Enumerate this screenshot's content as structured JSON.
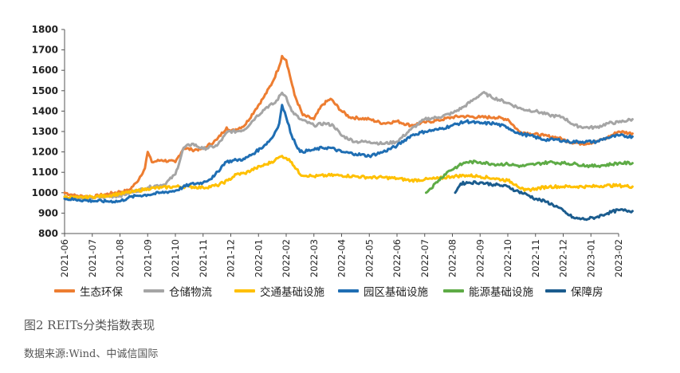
{
  "chart_data": {
    "type": "line",
    "ylim": [
      800,
      1800
    ],
    "yticks": [
      800,
      900,
      1000,
      1100,
      1200,
      1300,
      1400,
      1500,
      1600,
      1700,
      1800
    ],
    "x_ticks": [
      "2021-06",
      "2021-07",
      "2021-08",
      "2021-09",
      "2021-10",
      "2021-11",
      "2021-12",
      "2022-01",
      "2022-02",
      "2022-03",
      "2022-04",
      "2022-05",
      "2022-06",
      "2022-07",
      "2022-08",
      "2022-09",
      "2022-10",
      "2022-11",
      "2022-12",
      "2023-01",
      "2023-02"
    ],
    "series": [
      {
        "name": "生态环保",
        "color": "#ED7D31",
        "points": [
          [
            0,
            1000
          ],
          [
            0.4,
            985
          ],
          [
            1,
            980
          ],
          [
            1.5,
            992
          ],
          [
            2,
            1005
          ],
          [
            2.3,
            1010
          ],
          [
            2.6,
            1050
          ],
          [
            2.9,
            1120
          ],
          [
            3.0,
            1200
          ],
          [
            3.15,
            1150
          ],
          [
            3.5,
            1160
          ],
          [
            4,
            1150
          ],
          [
            4.3,
            1220
          ],
          [
            4.6,
            1210
          ],
          [
            5,
            1215
          ],
          [
            5.5,
            1260
          ],
          [
            5.85,
            1320
          ],
          [
            6,
            1300
          ],
          [
            6.5,
            1330
          ],
          [
            6.9,
            1410
          ],
          [
            7.2,
            1470
          ],
          [
            7.5,
            1540
          ],
          [
            7.75,
            1620
          ],
          [
            7.85,
            1670
          ],
          [
            8.0,
            1650
          ],
          [
            8.3,
            1480
          ],
          [
            8.6,
            1380
          ],
          [
            9,
            1360
          ],
          [
            9.3,
            1430
          ],
          [
            9.6,
            1460
          ],
          [
            10,
            1400
          ],
          [
            10.3,
            1370
          ],
          [
            11,
            1360
          ],
          [
            11.5,
            1340
          ],
          [
            12,
            1350
          ],
          [
            12.5,
            1330
          ],
          [
            13,
            1345
          ],
          [
            13.5,
            1355
          ],
          [
            14,
            1370
          ],
          [
            14.3,
            1375
          ],
          [
            15,
            1370
          ],
          [
            15.5,
            1370
          ],
          [
            16,
            1360
          ],
          [
            16.4,
            1300
          ],
          [
            16.8,
            1290
          ],
          [
            17.3,
            1280
          ],
          [
            17.8,
            1270
          ],
          [
            18.2,
            1250
          ],
          [
            18.7,
            1240
          ],
          [
            19.2,
            1250
          ],
          [
            19.6,
            1270
          ],
          [
            20,
            1300
          ],
          [
            20.5,
            1290
          ]
        ]
      },
      {
        "name": "仓储物流",
        "color": "#A5A5A5",
        "points": [
          [
            0,
            975
          ],
          [
            0.5,
            972
          ],
          [
            1,
            975
          ],
          [
            1.5,
            980
          ],
          [
            2,
            985
          ],
          [
            2.5,
            1005
          ],
          [
            3,
            1025
          ],
          [
            3.3,
            1035
          ],
          [
            3.6,
            1040
          ],
          [
            4,
            1090
          ],
          [
            4.3,
            1220
          ],
          [
            4.6,
            1240
          ],
          [
            5,
            1215
          ],
          [
            5.5,
            1230
          ],
          [
            5.9,
            1300
          ],
          [
            6.2,
            1300
          ],
          [
            6.5,
            1310
          ],
          [
            6.9,
            1370
          ],
          [
            7.3,
            1420
          ],
          [
            7.6,
            1440
          ],
          [
            7.85,
            1490
          ],
          [
            8.0,
            1470
          ],
          [
            8.2,
            1400
          ],
          [
            8.5,
            1360
          ],
          [
            9,
            1330
          ],
          [
            9.4,
            1340
          ],
          [
            9.7,
            1330
          ],
          [
            10,
            1280
          ],
          [
            10.5,
            1250
          ],
          [
            11,
            1250
          ],
          [
            11.5,
            1240
          ],
          [
            12,
            1250
          ],
          [
            12.5,
            1310
          ],
          [
            13,
            1360
          ],
          [
            13.5,
            1370
          ],
          [
            14,
            1390
          ],
          [
            14.4,
            1420
          ],
          [
            14.8,
            1460
          ],
          [
            15.1,
            1490
          ],
          [
            15.4,
            1470
          ],
          [
            16,
            1440
          ],
          [
            16.5,
            1410
          ],
          [
            17,
            1400
          ],
          [
            17.5,
            1380
          ],
          [
            18,
            1370
          ],
          [
            18.4,
            1330
          ],
          [
            18.8,
            1320
          ],
          [
            19.2,
            1320
          ],
          [
            19.6,
            1340
          ],
          [
            20,
            1345
          ],
          [
            20.5,
            1360
          ]
        ]
      },
      {
        "name": "交通基础设施",
        "color": "#FFC000",
        "points": [
          [
            0,
            980
          ],
          [
            0.5,
            975
          ],
          [
            1,
            980
          ],
          [
            1.5,
            985
          ],
          [
            2,
            995
          ],
          [
            2.5,
            1005
          ],
          [
            3,
            1020
          ],
          [
            3.5,
            1025
          ],
          [
            4,
            1030
          ],
          [
            4.5,
            1030
          ],
          [
            5,
            1025
          ],
          [
            5.5,
            1035
          ],
          [
            5.9,
            1060
          ],
          [
            6.2,
            1090
          ],
          [
            6.5,
            1095
          ],
          [
            6.9,
            1120
          ],
          [
            7.3,
            1140
          ],
          [
            7.6,
            1160
          ],
          [
            7.85,
            1180
          ],
          [
            8.0,
            1170
          ],
          [
            8.2,
            1150
          ],
          [
            8.5,
            1090
          ],
          [
            9,
            1080
          ],
          [
            9.5,
            1085
          ],
          [
            10,
            1085
          ],
          [
            10.5,
            1080
          ],
          [
            11,
            1075
          ],
          [
            11.5,
            1075
          ],
          [
            12,
            1070
          ],
          [
            12.5,
            1060
          ],
          [
            13,
            1065
          ],
          [
            13.5,
            1070
          ],
          [
            14,
            1080
          ],
          [
            14.5,
            1085
          ],
          [
            15,
            1080
          ],
          [
            15.5,
            1070
          ],
          [
            16,
            1060
          ],
          [
            16.3,
            1040
          ],
          [
            16.6,
            1010
          ],
          [
            17,
            1020
          ],
          [
            17.5,
            1030
          ],
          [
            18,
            1030
          ],
          [
            18.5,
            1030
          ],
          [
            19,
            1030
          ],
          [
            19.5,
            1035
          ],
          [
            20,
            1035
          ],
          [
            20.5,
            1030
          ]
        ]
      },
      {
        "name": "园区基础设施",
        "color": "#1F6EB3",
        "points": [
          [
            0,
            970
          ],
          [
            0.5,
            965
          ],
          [
            1,
            960
          ],
          [
            1.5,
            958
          ],
          [
            2,
            958
          ],
          [
            2.3,
            975
          ],
          [
            2.6,
            985
          ],
          [
            3,
            990
          ],
          [
            3.5,
            1000
          ],
          [
            4,
            1010
          ],
          [
            4.5,
            1040
          ],
          [
            5,
            1050
          ],
          [
            5.4,
            1080
          ],
          [
            5.8,
            1150
          ],
          [
            6.2,
            1160
          ],
          [
            6.5,
            1165
          ],
          [
            6.9,
            1200
          ],
          [
            7.2,
            1230
          ],
          [
            7.5,
            1270
          ],
          [
            7.75,
            1340
          ],
          [
            7.85,
            1430
          ],
          [
            8.0,
            1370
          ],
          [
            8.2,
            1280
          ],
          [
            8.5,
            1200
          ],
          [
            9,
            1210
          ],
          [
            9.3,
            1220
          ],
          [
            9.6,
            1220
          ],
          [
            10,
            1200
          ],
          [
            10.5,
            1190
          ],
          [
            11,
            1180
          ],
          [
            11.5,
            1200
          ],
          [
            12,
            1230
          ],
          [
            12.5,
            1280
          ],
          [
            13,
            1300
          ],
          [
            13.5,
            1310
          ],
          [
            14,
            1330
          ],
          [
            14.5,
            1350
          ],
          [
            15,
            1340
          ],
          [
            15.5,
            1340
          ],
          [
            16,
            1320
          ],
          [
            16.4,
            1290
          ],
          [
            16.8,
            1280
          ],
          [
            17.3,
            1260
          ],
          [
            17.8,
            1260
          ],
          [
            18.2,
            1250
          ],
          [
            18.7,
            1250
          ],
          [
            19.2,
            1250
          ],
          [
            19.6,
            1270
          ],
          [
            20,
            1280
          ],
          [
            20.5,
            1275
          ]
        ]
      },
      {
        "name": "能源基础设施",
        "color": "#5EAB46",
        "points": [
          [
            13.05,
            1000
          ],
          [
            13.2,
            1020
          ],
          [
            13.5,
            1060
          ],
          [
            13.8,
            1100
          ],
          [
            14.2,
            1130
          ],
          [
            14.5,
            1150
          ],
          [
            15,
            1150
          ],
          [
            15.5,
            1140
          ],
          [
            16,
            1140
          ],
          [
            16.5,
            1130
          ],
          [
            17,
            1140
          ],
          [
            17.5,
            1150
          ],
          [
            18,
            1145
          ],
          [
            18.5,
            1140
          ],
          [
            19,
            1130
          ],
          [
            19.5,
            1135
          ],
          [
            20,
            1145
          ],
          [
            20.5,
            1145
          ]
        ]
      },
      {
        "name": "保障房",
        "color": "#1B5C8E",
        "points": [
          [
            14.1,
            1000
          ],
          [
            14.3,
            1045
          ],
          [
            14.6,
            1050
          ],
          [
            15,
            1050
          ],
          [
            15.5,
            1040
          ],
          [
            16,
            1030
          ],
          [
            16.3,
            1010
          ],
          [
            16.7,
            990
          ],
          [
            17,
            970
          ],
          [
            17.4,
            955
          ],
          [
            17.8,
            930
          ],
          [
            18.1,
            900
          ],
          [
            18.4,
            875
          ],
          [
            18.8,
            870
          ],
          [
            19.2,
            880
          ],
          [
            19.6,
            900
          ],
          [
            20,
            915
          ],
          [
            20.5,
            910
          ]
        ]
      }
    ]
  },
  "caption": "图2 REITs分类指数表现",
  "source": "数据来源:Wind、中诚信国际"
}
